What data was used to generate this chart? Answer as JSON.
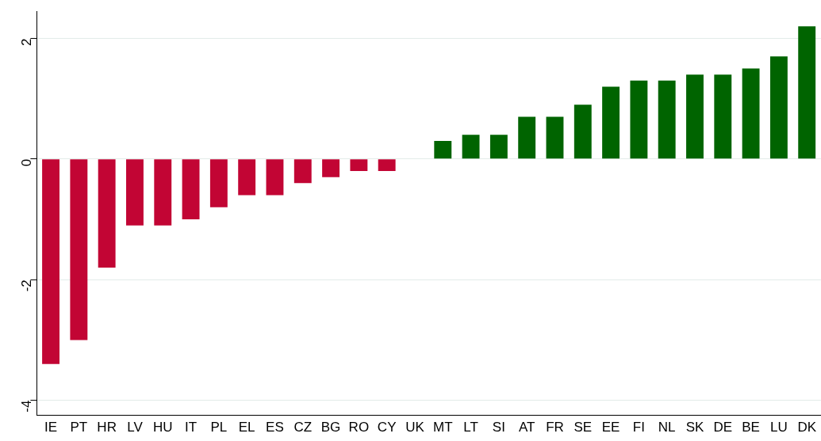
{
  "chart_data": {
    "type": "bar",
    "categories": [
      "IE",
      "PT",
      "HR",
      "LV",
      "HU",
      "IT",
      "PL",
      "EL",
      "ES",
      "CZ",
      "BG",
      "RO",
      "CY",
      "UK",
      "MT",
      "LT",
      "SI",
      "AT",
      "FR",
      "SE",
      "EE",
      "FI",
      "NL",
      "SK",
      "DE",
      "BE",
      "LU",
      "DK"
    ],
    "values": [
      -3.4,
      -3.0,
      -1.8,
      -1.1,
      -1.1,
      -1.0,
      -0.8,
      -0.6,
      -0.6,
      -0.4,
      -0.3,
      -0.2,
      -0.2,
      0,
      0.3,
      0.4,
      0.4,
      0.7,
      0.7,
      0.9,
      1.2,
      1.3,
      1.3,
      1.4,
      1.4,
      1.5,
      1.7,
      2.2
    ],
    "colors": [
      "#c20534",
      "#c20534",
      "#c20534",
      "#c20534",
      "#c20534",
      "#c20534",
      "#c20534",
      "#c20534",
      "#c20534",
      "#c20534",
      "#c20534",
      "#c20534",
      "#c20534",
      "#c20534",
      "#006400",
      "#006400",
      "#006400",
      "#006400",
      "#006400",
      "#006400",
      "#006400",
      "#006400",
      "#006400",
      "#006400",
      "#006400",
      "#006400",
      "#006400",
      "#006400"
    ],
    "ylim": [
      -4.25,
      2.45
    ],
    "yticks": [
      -4,
      -2,
      0,
      2
    ],
    "grid": "y",
    "legend": false
  }
}
